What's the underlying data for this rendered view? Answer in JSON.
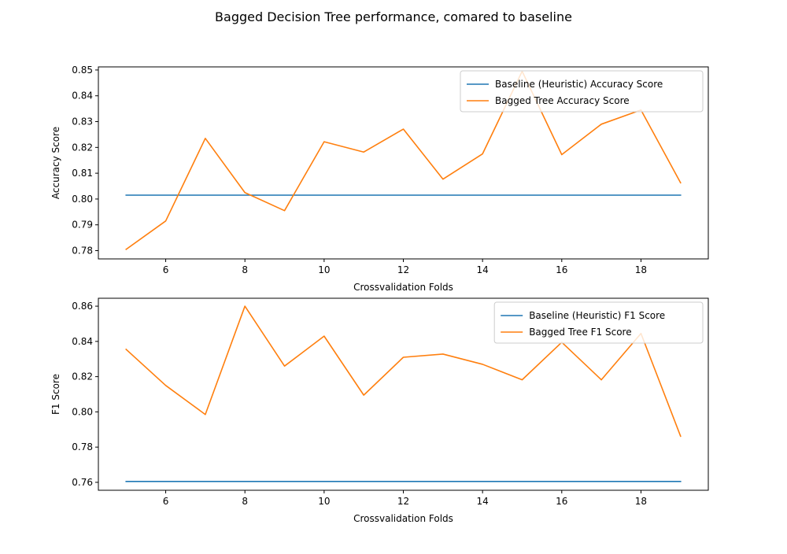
{
  "figure": {
    "title": "Bagged Decision Tree performance, comared to baseline"
  },
  "chart_data": [
    {
      "type": "line",
      "title": "",
      "xlabel": "Crossvalidation Folds",
      "ylabel": "Accuracy Score",
      "xlim": [
        4.3,
        19.7
      ],
      "ylim": [
        0.7768,
        0.8512
      ],
      "xticks": [
        6,
        8,
        10,
        12,
        14,
        16,
        18
      ],
      "yticks": [
        0.78,
        0.79,
        0.8,
        0.81,
        0.82,
        0.83,
        0.84,
        0.85
      ],
      "ytick_format": 2,
      "grid": false,
      "legend_position": "top-right",
      "x": [
        5,
        6,
        7,
        8,
        9,
        10,
        11,
        12,
        13,
        14,
        15,
        16,
        17,
        18,
        19
      ],
      "series": [
        {
          "name": "Baseline (Heuristic) Accuracy Score",
          "color": "#1f77b4",
          "values": [
            0.8015,
            0.8015,
            0.8015,
            0.8015,
            0.8015,
            0.8015,
            0.8015,
            0.8015,
            0.8015,
            0.8015,
            0.8015,
            0.8015,
            0.8015,
            0.8015,
            0.8015
          ]
        },
        {
          "name": "Bagged Tree Accuracy Score",
          "color": "#ff7f0e",
          "values": [
            0.7805,
            0.7915,
            0.8235,
            0.8025,
            0.7955,
            0.8222,
            0.8182,
            0.8271,
            0.8077,
            0.8175,
            0.8495,
            0.8172,
            0.829,
            0.8345,
            0.8063
          ]
        }
      ]
    },
    {
      "type": "line",
      "title": "",
      "xlabel": "Crossvalidation Folds",
      "ylabel": "F1 Score",
      "xlim": [
        4.3,
        19.7
      ],
      "ylim": [
        0.7555,
        0.8645
      ],
      "xticks": [
        6,
        8,
        10,
        12,
        14,
        16,
        18
      ],
      "yticks": [
        0.76,
        0.78,
        0.8,
        0.82,
        0.84,
        0.86
      ],
      "ytick_format": 2,
      "grid": false,
      "legend_position": "top-right",
      "x": [
        5,
        6,
        7,
        8,
        9,
        10,
        11,
        12,
        13,
        14,
        15,
        16,
        17,
        18,
        19
      ],
      "series": [
        {
          "name": "Baseline (Heuristic) F1 Score",
          "color": "#1f77b4",
          "values": [
            0.7605,
            0.7605,
            0.7605,
            0.7605,
            0.7605,
            0.7605,
            0.7605,
            0.7605,
            0.7605,
            0.7605,
            0.7605,
            0.7605,
            0.7605,
            0.7605,
            0.7605
          ]
        },
        {
          "name": "Bagged Tree F1 Score",
          "color": "#ff7f0e",
          "values": [
            0.8355,
            0.815,
            0.7985,
            0.86,
            0.826,
            0.843,
            0.8095,
            0.831,
            0.8328,
            0.827,
            0.8182,
            0.8395,
            0.8182,
            0.8445,
            0.7862
          ]
        }
      ]
    }
  ]
}
